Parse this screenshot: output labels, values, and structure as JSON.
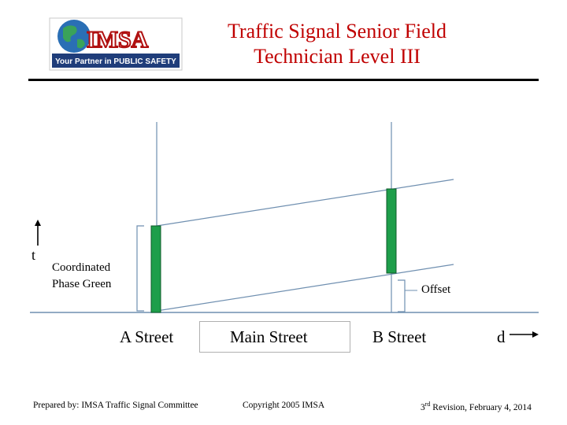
{
  "header": {
    "title_line1": "Traffic Signal Senior Field",
    "title_line2": "Technician Level III",
    "logo_text": "IMSA",
    "logo_tagline": "Your Partner in PUBLIC SAFETY"
  },
  "diagram": {
    "time_axis_label": "t",
    "distance_axis_label": "d",
    "green_band_label_line1": "Coordinated",
    "green_band_label_line2": "Phase Green",
    "offset_label": "Offset",
    "streets": [
      "A Street",
      "Main Street",
      "B Street"
    ],
    "colors": {
      "green": "#1e9e4a",
      "line": "#6f8fb0",
      "title": "#c00000"
    }
  },
  "footer": {
    "left": "Prepared by: IMSA Traffic Signal Committee",
    "middle": "Copyright 2005 IMSA",
    "right_sup": "3rd",
    "right_sup_num": "3",
    "right_sup_suffix": "rd",
    "right_rest": " Revision, February 4, 2014"
  }
}
